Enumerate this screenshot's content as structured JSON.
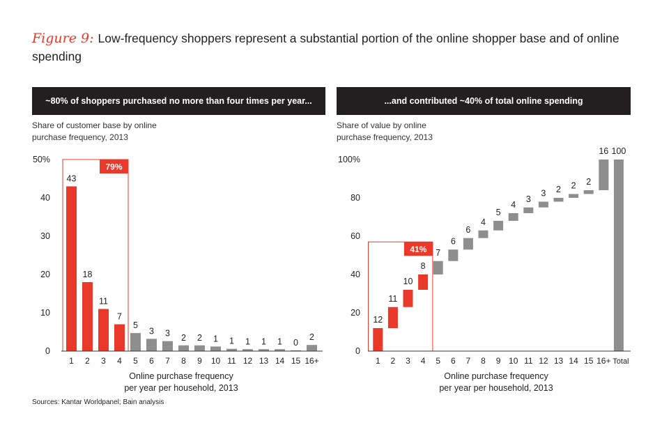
{
  "title": {
    "label": "Figure 9:",
    "text": "Low-frequency shoppers represent a substantial portion of the online shopper base and of online spending"
  },
  "colors": {
    "red": "#e8392b",
    "gray": "#8e8e8e",
    "dark": "#231f20"
  },
  "panels": [
    {
      "header": "~80% of shoppers purchased no more than four times per year...",
      "subtitle_line1": "Share of customer base by online",
      "subtitle_line2": "purchase frequency, 2013",
      "xlabel_line1": "Online purchase frequency",
      "xlabel_line2": "per year per household, 2013"
    },
    {
      "header": "...and contributed ~40% of total online spending",
      "subtitle_line1": "Share of value by online",
      "subtitle_line2": "purchase frequency, 2013",
      "xlabel_line1": "Online purchase frequency",
      "xlabel_line2": "per year per household, 2013"
    }
  ],
  "source": "Sources: Kantar Worldpanel; Bain analysis",
  "chart_data": [
    {
      "type": "bar",
      "categories": [
        "1",
        "2",
        "3",
        "4",
        "5",
        "6",
        "7",
        "8",
        "9",
        "10",
        "11",
        "12",
        "13",
        "14",
        "15",
        "16+"
      ],
      "values": [
        43,
        18,
        11,
        7,
        5,
        3,
        3,
        2,
        2,
        1,
        1,
        1,
        1,
        1,
        0,
        2
      ],
      "labels": [
        "43",
        "18",
        "11",
        "7",
        "5",
        "3",
        "3",
        "2",
        "2",
        "1",
        "1",
        "1",
        "1",
        "1",
        "0",
        "2"
      ],
      "plotted_values": [
        43,
        18,
        11,
        7,
        4.7,
        3.2,
        2.6,
        1.5,
        1.5,
        1.2,
        0.6,
        0.5,
        0.5,
        0.5,
        0.2,
        1.6
      ],
      "highlight_count": 4,
      "highlight_label": "79%",
      "yticks": [
        "0",
        "10",
        "20",
        "30",
        "40",
        "50%"
      ],
      "ylim": [
        0,
        50
      ],
      "xlabel": "Online purchase frequency per year per household, 2013",
      "ylabel": "Share of customer base by online purchase frequency, 2013"
    },
    {
      "type": "waterfall",
      "categories": [
        "1",
        "2",
        "3",
        "4",
        "5",
        "6",
        "7",
        "8",
        "9",
        "10",
        "11",
        "12",
        "13",
        "14",
        "15",
        "16+",
        "Total"
      ],
      "values": [
        12,
        11,
        10,
        8,
        7,
        6,
        6,
        4,
        5,
        4,
        3,
        3,
        2,
        2,
        2,
        16,
        100
      ],
      "labels": [
        "12",
        "11",
        "10",
        "8",
        "7",
        "6",
        "6",
        "4",
        "5",
        "4",
        "3",
        "3",
        "2",
        "2",
        "2",
        "16",
        "100"
      ],
      "ranges": [
        [
          0,
          12
        ],
        [
          12,
          23
        ],
        [
          23,
          32
        ],
        [
          32,
          40
        ],
        [
          40,
          47
        ],
        [
          47,
          53
        ],
        [
          53,
          59
        ],
        [
          59,
          63
        ],
        [
          63,
          68
        ],
        [
          68,
          72
        ],
        [
          72,
          75
        ],
        [
          75,
          78
        ],
        [
          78,
          80
        ],
        [
          80,
          82
        ],
        [
          82,
          84
        ],
        [
          84,
          100
        ],
        [
          0,
          100
        ]
      ],
      "highlight_count": 4,
      "highlight_label": "41%",
      "yticks": [
        "0",
        "20",
        "40",
        "60",
        "80",
        "100%"
      ],
      "ylim": [
        0,
        100
      ],
      "xlabel": "Online purchase frequency per year per household, 2013",
      "ylabel": "Share of value by online purchase frequency, 2013"
    }
  ]
}
